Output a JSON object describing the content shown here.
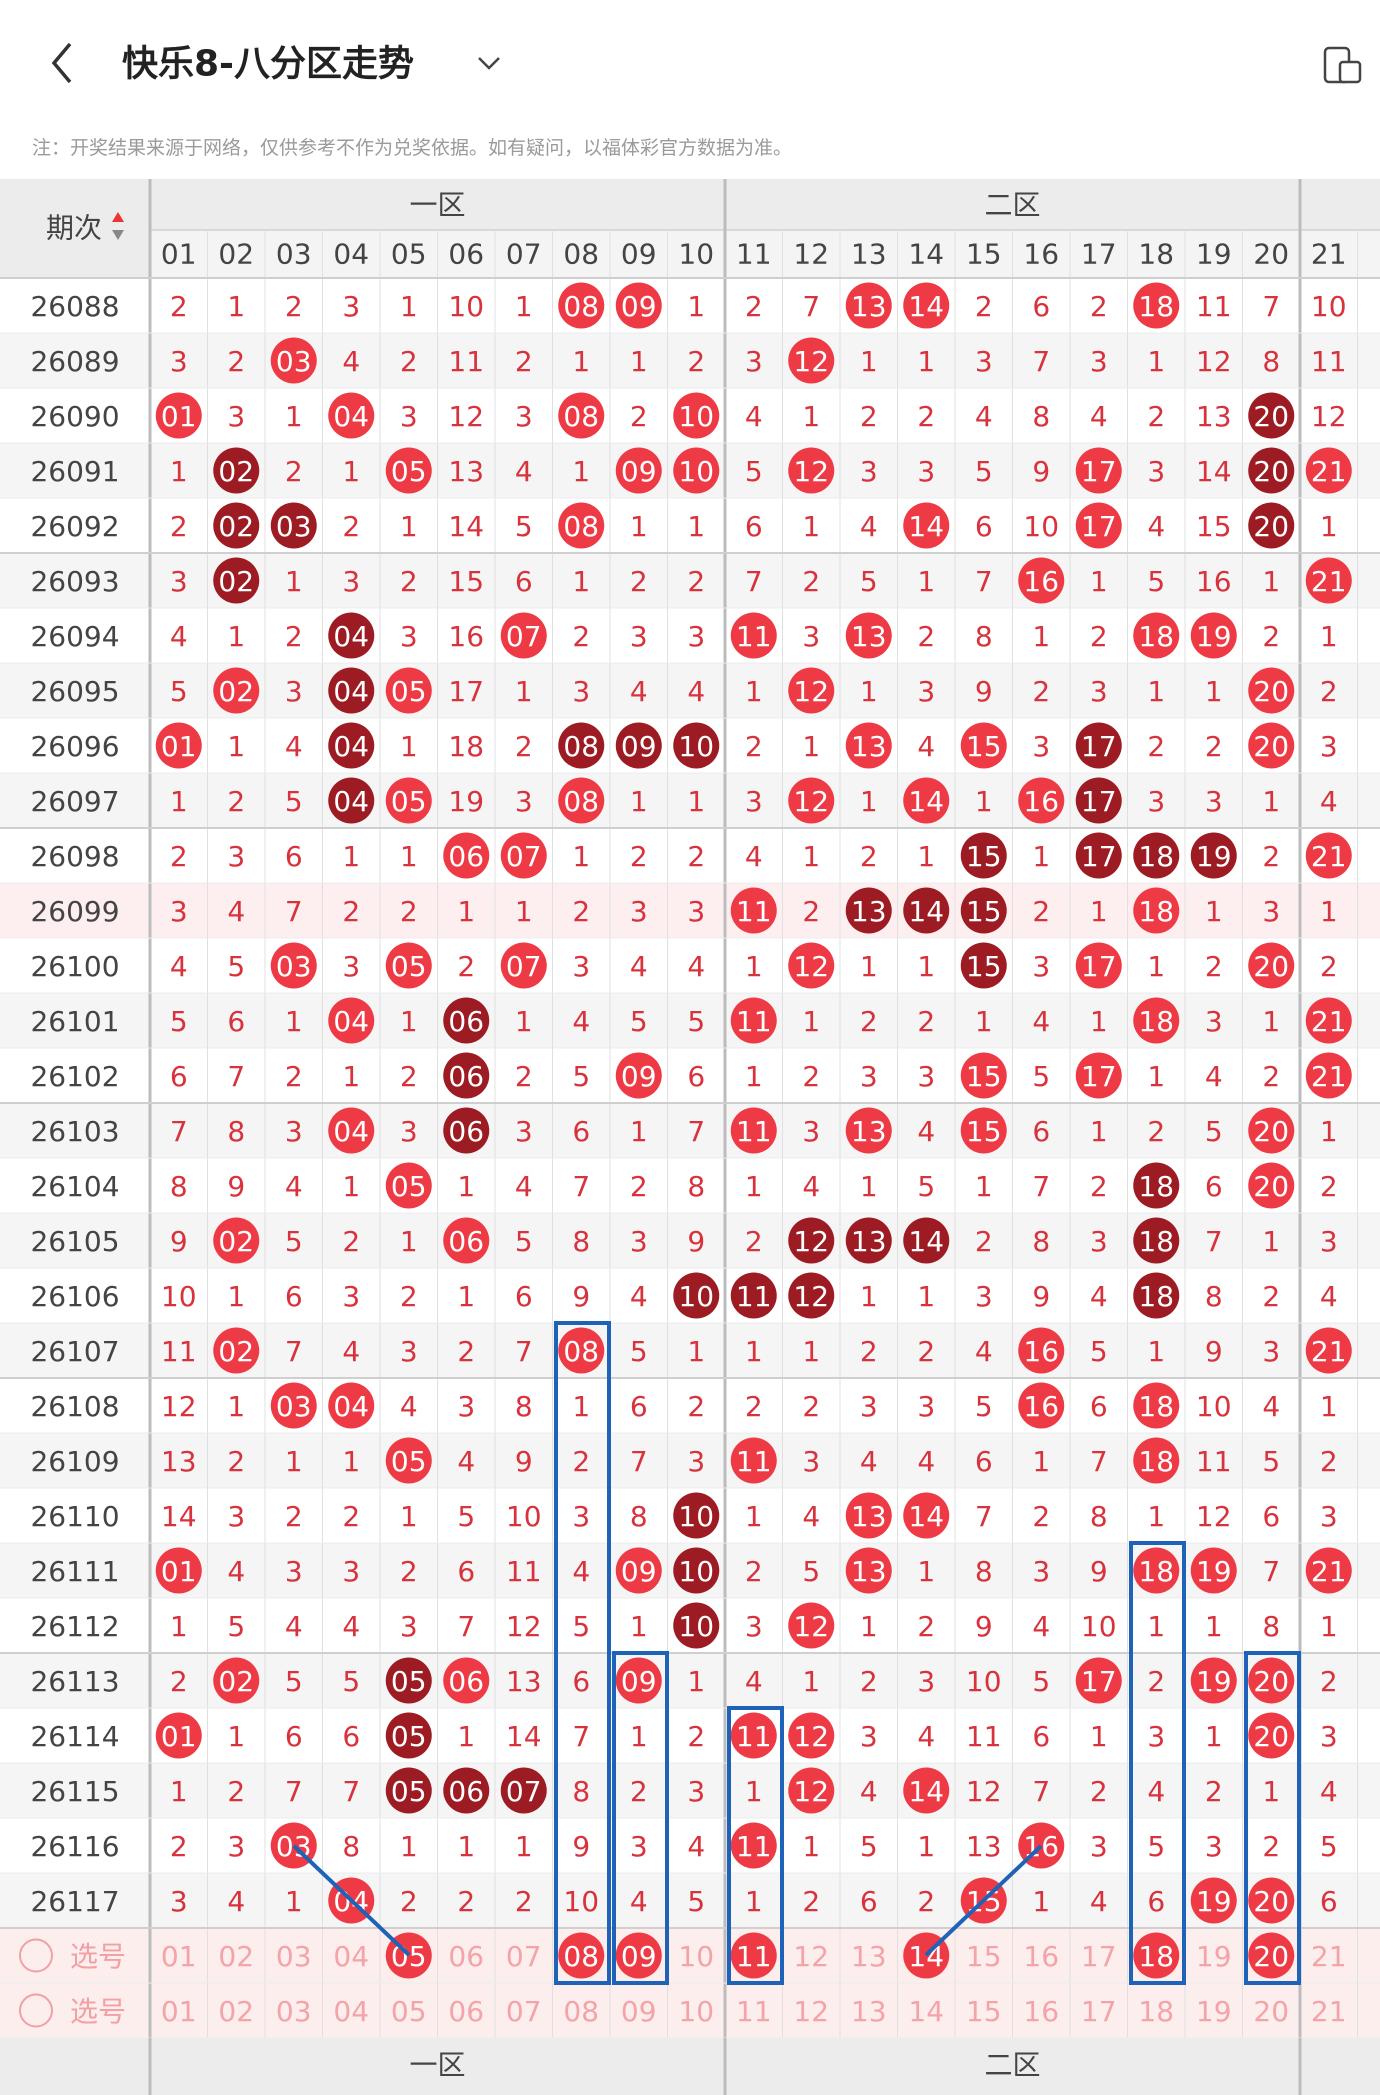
{
  "header": {
    "title": "快乐8-八分区走势"
  },
  "note": "注：开奖结果来源于网络，仅供参考不作为兑奖依据。如有疑问，以福体彩官方数据为准。",
  "table": {
    "issue_header": "期次",
    "zones": [
      "一区",
      "二区"
    ],
    "columns": [
      "01",
      "02",
      "03",
      "04",
      "05",
      "06",
      "07",
      "08",
      "09",
      "10",
      "11",
      "12",
      "13",
      "14",
      "15",
      "16",
      "17",
      "18",
      "19",
      "20",
      "21"
    ],
    "ball_color": "#ee3a45",
    "dark_ball_color": "#9d1b23",
    "miss_color": "#d8333d",
    "rows": [
      {
        "issue": "26088",
        "cells": [
          "2",
          "1",
          "2",
          "3",
          "1",
          "10",
          "1",
          "08",
          "09",
          "1",
          "2",
          "7",
          "13",
          "14",
          "2",
          "6",
          "2",
          "18",
          "11",
          "7",
          "10"
        ],
        "hits": [
          7,
          8,
          12,
          13,
          17
        ]
      },
      {
        "issue": "26089",
        "cells": [
          "3",
          "2",
          "03",
          "4",
          "2",
          "11",
          "2",
          "1",
          "1",
          "2",
          "3",
          "12",
          "1",
          "1",
          "3",
          "7",
          "3",
          "1",
          "12",
          "8",
          "11"
        ],
        "hits": [
          2,
          11
        ]
      },
      {
        "issue": "26090",
        "cells": [
          "01",
          "3",
          "1",
          "04",
          "3",
          "12",
          "3",
          "08",
          "2",
          "10",
          "4",
          "1",
          "2",
          "2",
          "4",
          "8",
          "4",
          "2",
          "13",
          "20",
          "12"
        ],
        "hits": [
          0,
          3,
          7,
          9,
          19
        ],
        "dark": [
          19
        ]
      },
      {
        "issue": "26091",
        "cells": [
          "1",
          "02",
          "2",
          "1",
          "05",
          "13",
          "4",
          "1",
          "09",
          "10",
          "5",
          "12",
          "3",
          "3",
          "5",
          "9",
          "17",
          "3",
          "14",
          "20",
          "21"
        ],
        "hits": [
          1,
          4,
          8,
          9,
          11,
          16,
          19,
          20
        ],
        "dark": [
          1,
          19
        ]
      },
      {
        "issue": "26092",
        "cells": [
          "2",
          "02",
          "03",
          "2",
          "1",
          "14",
          "5",
          "08",
          "1",
          "1",
          "6",
          "1",
          "4",
          "14",
          "6",
          "10",
          "17",
          "4",
          "15",
          "20",
          "1"
        ],
        "hits": [
          1,
          2,
          7,
          13,
          16,
          19
        ],
        "dark": [
          1,
          2,
          19
        ]
      },
      {
        "issue": "26093",
        "cells": [
          "3",
          "02",
          "1",
          "3",
          "2",
          "15",
          "6",
          "1",
          "2",
          "2",
          "7",
          "2",
          "5",
          "1",
          "7",
          "16",
          "1",
          "5",
          "16",
          "1",
          "21"
        ],
        "hits": [
          1,
          15,
          20
        ],
        "dark": [
          1
        ]
      },
      {
        "issue": "26094",
        "cells": [
          "4",
          "1",
          "2",
          "04",
          "3",
          "16",
          "07",
          "2",
          "3",
          "3",
          "11",
          "3",
          "13",
          "2",
          "8",
          "1",
          "2",
          "18",
          "19",
          "2",
          "1"
        ],
        "hits": [
          3,
          6,
          10,
          12,
          17,
          18
        ],
        "dark": [
          3
        ]
      },
      {
        "issue": "26095",
        "cells": [
          "5",
          "02",
          "3",
          "04",
          "05",
          "17",
          "1",
          "3",
          "4",
          "4",
          "1",
          "12",
          "1",
          "3",
          "9",
          "2",
          "3",
          "1",
          "1",
          "20",
          "2"
        ],
        "hits": [
          1,
          3,
          4,
          11,
          19
        ],
        "dark": [
          3
        ]
      },
      {
        "issue": "26096",
        "cells": [
          "01",
          "1",
          "4",
          "04",
          "1",
          "18",
          "2",
          "08",
          "09",
          "10",
          "2",
          "1",
          "13",
          "4",
          "15",
          "3",
          "17",
          "2",
          "2",
          "20",
          "3"
        ],
        "hits": [
          0,
          3,
          7,
          8,
          9,
          12,
          14,
          16,
          19
        ],
        "dark": [
          3,
          7,
          8,
          9,
          16
        ]
      },
      {
        "issue": "26097",
        "cells": [
          "1",
          "2",
          "5",
          "04",
          "05",
          "19",
          "3",
          "08",
          "1",
          "1",
          "3",
          "12",
          "1",
          "14",
          "1",
          "16",
          "17",
          "3",
          "3",
          "1",
          "4"
        ],
        "hits": [
          3,
          4,
          7,
          11,
          13,
          15,
          16
        ],
        "dark": [
          3,
          16
        ]
      },
      {
        "issue": "26098",
        "cells": [
          "2",
          "3",
          "6",
          "1",
          "1",
          "06",
          "07",
          "1",
          "2",
          "2",
          "4",
          "1",
          "2",
          "1",
          "15",
          "1",
          "17",
          "18",
          "19",
          "2",
          "21"
        ],
        "hits": [
          5,
          6,
          14,
          16,
          17,
          18,
          20
        ],
        "dark": [
          14,
          16,
          17,
          18
        ]
      },
      {
        "issue": "26099",
        "cells": [
          "3",
          "4",
          "7",
          "2",
          "2",
          "1",
          "1",
          "2",
          "3",
          "3",
          "11",
          "2",
          "13",
          "14",
          "15",
          "2",
          "1",
          "18",
          "1",
          "3",
          "1"
        ],
        "hits": [
          10,
          12,
          13,
          14,
          17
        ],
        "dark": [
          12,
          13,
          14
        ],
        "background": "#fdeff0"
      },
      {
        "issue": "26100",
        "cells": [
          "4",
          "5",
          "03",
          "3",
          "05",
          "2",
          "07",
          "3",
          "4",
          "4",
          "1",
          "12",
          "1",
          "1",
          "15",
          "3",
          "17",
          "1",
          "2",
          "20",
          "2"
        ],
        "hits": [
          2,
          4,
          6,
          11,
          14,
          16,
          19
        ],
        "dark": [
          14
        ]
      },
      {
        "issue": "26101",
        "cells": [
          "5",
          "6",
          "1",
          "04",
          "1",
          "06",
          "1",
          "4",
          "5",
          "5",
          "11",
          "1",
          "2",
          "2",
          "1",
          "4",
          "1",
          "18",
          "3",
          "1",
          "21"
        ],
        "hits": [
          3,
          5,
          10,
          17,
          20
        ],
        "dark": [
          5
        ]
      },
      {
        "issue": "26102",
        "cells": [
          "6",
          "7",
          "2",
          "1",
          "2",
          "06",
          "2",
          "5",
          "09",
          "6",
          "1",
          "2",
          "3",
          "3",
          "15",
          "5",
          "17",
          "1",
          "4",
          "2",
          "21"
        ],
        "hits": [
          5,
          8,
          14,
          16,
          20
        ],
        "dark": [
          5
        ]
      },
      {
        "issue": "26103",
        "cells": [
          "7",
          "8",
          "3",
          "04",
          "3",
          "06",
          "3",
          "6",
          "1",
          "7",
          "11",
          "3",
          "13",
          "4",
          "15",
          "6",
          "1",
          "2",
          "5",
          "20",
          "1"
        ],
        "hits": [
          3,
          5,
          10,
          12,
          14,
          19
        ],
        "dark": [
          5
        ]
      },
      {
        "issue": "26104",
        "cells": [
          "8",
          "9",
          "4",
          "1",
          "05",
          "1",
          "4",
          "7",
          "2",
          "8",
          "1",
          "4",
          "1",
          "5",
          "1",
          "7",
          "2",
          "18",
          "6",
          "20",
          "2"
        ],
        "hits": [
          4,
          17,
          19
        ],
        "dark": [
          17
        ]
      },
      {
        "issue": "26105",
        "cells": [
          "9",
          "02",
          "5",
          "2",
          "1",
          "06",
          "5",
          "8",
          "3",
          "9",
          "2",
          "12",
          "13",
          "14",
          "2",
          "8",
          "3",
          "18",
          "7",
          "1",
          "3"
        ],
        "hits": [
          1,
          5,
          11,
          12,
          13,
          17
        ],
        "dark": [
          11,
          12,
          13,
          17
        ]
      },
      {
        "issue": "26106",
        "cells": [
          "10",
          "1",
          "6",
          "3",
          "2",
          "1",
          "6",
          "9",
          "4",
          "10",
          "11",
          "12",
          "1",
          "1",
          "3",
          "9",
          "4",
          "18",
          "8",
          "2",
          "4"
        ],
        "hits": [
          9,
          10,
          11,
          17
        ],
        "dark": [
          9,
          10,
          11,
          17
        ]
      },
      {
        "issue": "26107",
        "cells": [
          "11",
          "02",
          "7",
          "4",
          "3",
          "2",
          "7",
          "08",
          "5",
          "1",
          "1",
          "1",
          "2",
          "2",
          "4",
          "16",
          "5",
          "1",
          "9",
          "3",
          "21"
        ],
        "hits": [
          1,
          7,
          15,
          20
        ]
      },
      {
        "issue": "26108",
        "cells": [
          "12",
          "1",
          "03",
          "04",
          "4",
          "3",
          "8",
          "1",
          "6",
          "2",
          "2",
          "2",
          "3",
          "3",
          "5",
          "16",
          "6",
          "18",
          "10",
          "4",
          "1"
        ],
        "hits": [
          2,
          3,
          15,
          17
        ]
      },
      {
        "issue": "26109",
        "cells": [
          "13",
          "2",
          "1",
          "1",
          "05",
          "4",
          "9",
          "2",
          "7",
          "3",
          "11",
          "3",
          "4",
          "4",
          "6",
          "1",
          "7",
          "18",
          "11",
          "5",
          "2"
        ],
        "hits": [
          4,
          10,
          17
        ]
      },
      {
        "issue": "26110",
        "cells": [
          "14",
          "3",
          "2",
          "2",
          "1",
          "5",
          "10",
          "3",
          "8",
          "10",
          "1",
          "4",
          "13",
          "14",
          "7",
          "2",
          "8",
          "1",
          "12",
          "6",
          "3"
        ],
        "hits": [
          9,
          12,
          13
        ],
        "dark": [
          9
        ]
      },
      {
        "issue": "26111",
        "cells": [
          "01",
          "4",
          "3",
          "3",
          "2",
          "6",
          "11",
          "4",
          "09",
          "10",
          "2",
          "5",
          "13",
          "1",
          "8",
          "3",
          "9",
          "18",
          "19",
          "7",
          "21"
        ],
        "hits": [
          0,
          8,
          9,
          12,
          17,
          18,
          20
        ],
        "dark": [
          9
        ]
      },
      {
        "issue": "26112",
        "cells": [
          "1",
          "5",
          "4",
          "4",
          "3",
          "7",
          "12",
          "5",
          "1",
          "10",
          "3",
          "12",
          "1",
          "2",
          "9",
          "4",
          "10",
          "1",
          "1",
          "8",
          "1"
        ],
        "hits": [
          9,
          11
        ],
        "dark": [
          9
        ]
      },
      {
        "issue": "26113",
        "cells": [
          "2",
          "02",
          "5",
          "5",
          "05",
          "06",
          "13",
          "6",
          "09",
          "1",
          "4",
          "1",
          "2",
          "3",
          "10",
          "5",
          "17",
          "2",
          "19",
          "20",
          "2"
        ],
        "hits": [
          1,
          4,
          5,
          8,
          16,
          18,
          19
        ],
        "dark": [
          4
        ]
      },
      {
        "issue": "26114",
        "cells": [
          "01",
          "1",
          "6",
          "6",
          "05",
          "1",
          "14",
          "7",
          "1",
          "2",
          "11",
          "12",
          "3",
          "4",
          "11",
          "6",
          "1",
          "3",
          "1",
          "20",
          "3"
        ],
        "hits": [
          0,
          4,
          10,
          11,
          19
        ],
        "dark": [
          4
        ]
      },
      {
        "issue": "26115",
        "cells": [
          "1",
          "2",
          "7",
          "7",
          "05",
          "06",
          "07",
          "8",
          "2",
          "3",
          "1",
          "12",
          "4",
          "14",
          "12",
          "7",
          "2",
          "4",
          "2",
          "1",
          "4"
        ],
        "hits": [
          4,
          5,
          6,
          11,
          13
        ],
        "dark": [
          4,
          5,
          6
        ]
      },
      {
        "issue": "26116",
        "cells": [
          "2",
          "3",
          "03",
          "8",
          "1",
          "1",
          "1",
          "9",
          "3",
          "4",
          "11",
          "1",
          "5",
          "1",
          "13",
          "16",
          "3",
          "5",
          "3",
          "2",
          "5"
        ],
        "hits": [
          2,
          10,
          15
        ]
      },
      {
        "issue": "26117",
        "cells": [
          "3",
          "4",
          "1",
          "04",
          "2",
          "2",
          "2",
          "10",
          "4",
          "5",
          "1",
          "2",
          "6",
          "2",
          "15",
          "1",
          "4",
          "6",
          "19",
          "20",
          "6"
        ],
        "hits": [
          3,
          14,
          18,
          19
        ]
      }
    ],
    "select_rows": [
      {
        "label": "选号",
        "cells": [
          "01",
          "02",
          "03",
          "04",
          "05",
          "06",
          "07",
          "08",
          "09",
          "10",
          "11",
          "12",
          "13",
          "14",
          "15",
          "16",
          "17",
          "18",
          "19",
          "20",
          "21"
        ],
        "hits": [
          4,
          7,
          8,
          10,
          13,
          17,
          19
        ]
      },
      {
        "label": "选号",
        "cells": [
          "01",
          "02",
          "03",
          "04",
          "05",
          "06",
          "07",
          "08",
          "09",
          "10",
          "11",
          "12",
          "13",
          "14",
          "15",
          "16",
          "17",
          "18",
          "19",
          "20",
          "21"
        ]
      }
    ],
    "footer_zones": [
      "一区",
      "二区"
    ]
  }
}
